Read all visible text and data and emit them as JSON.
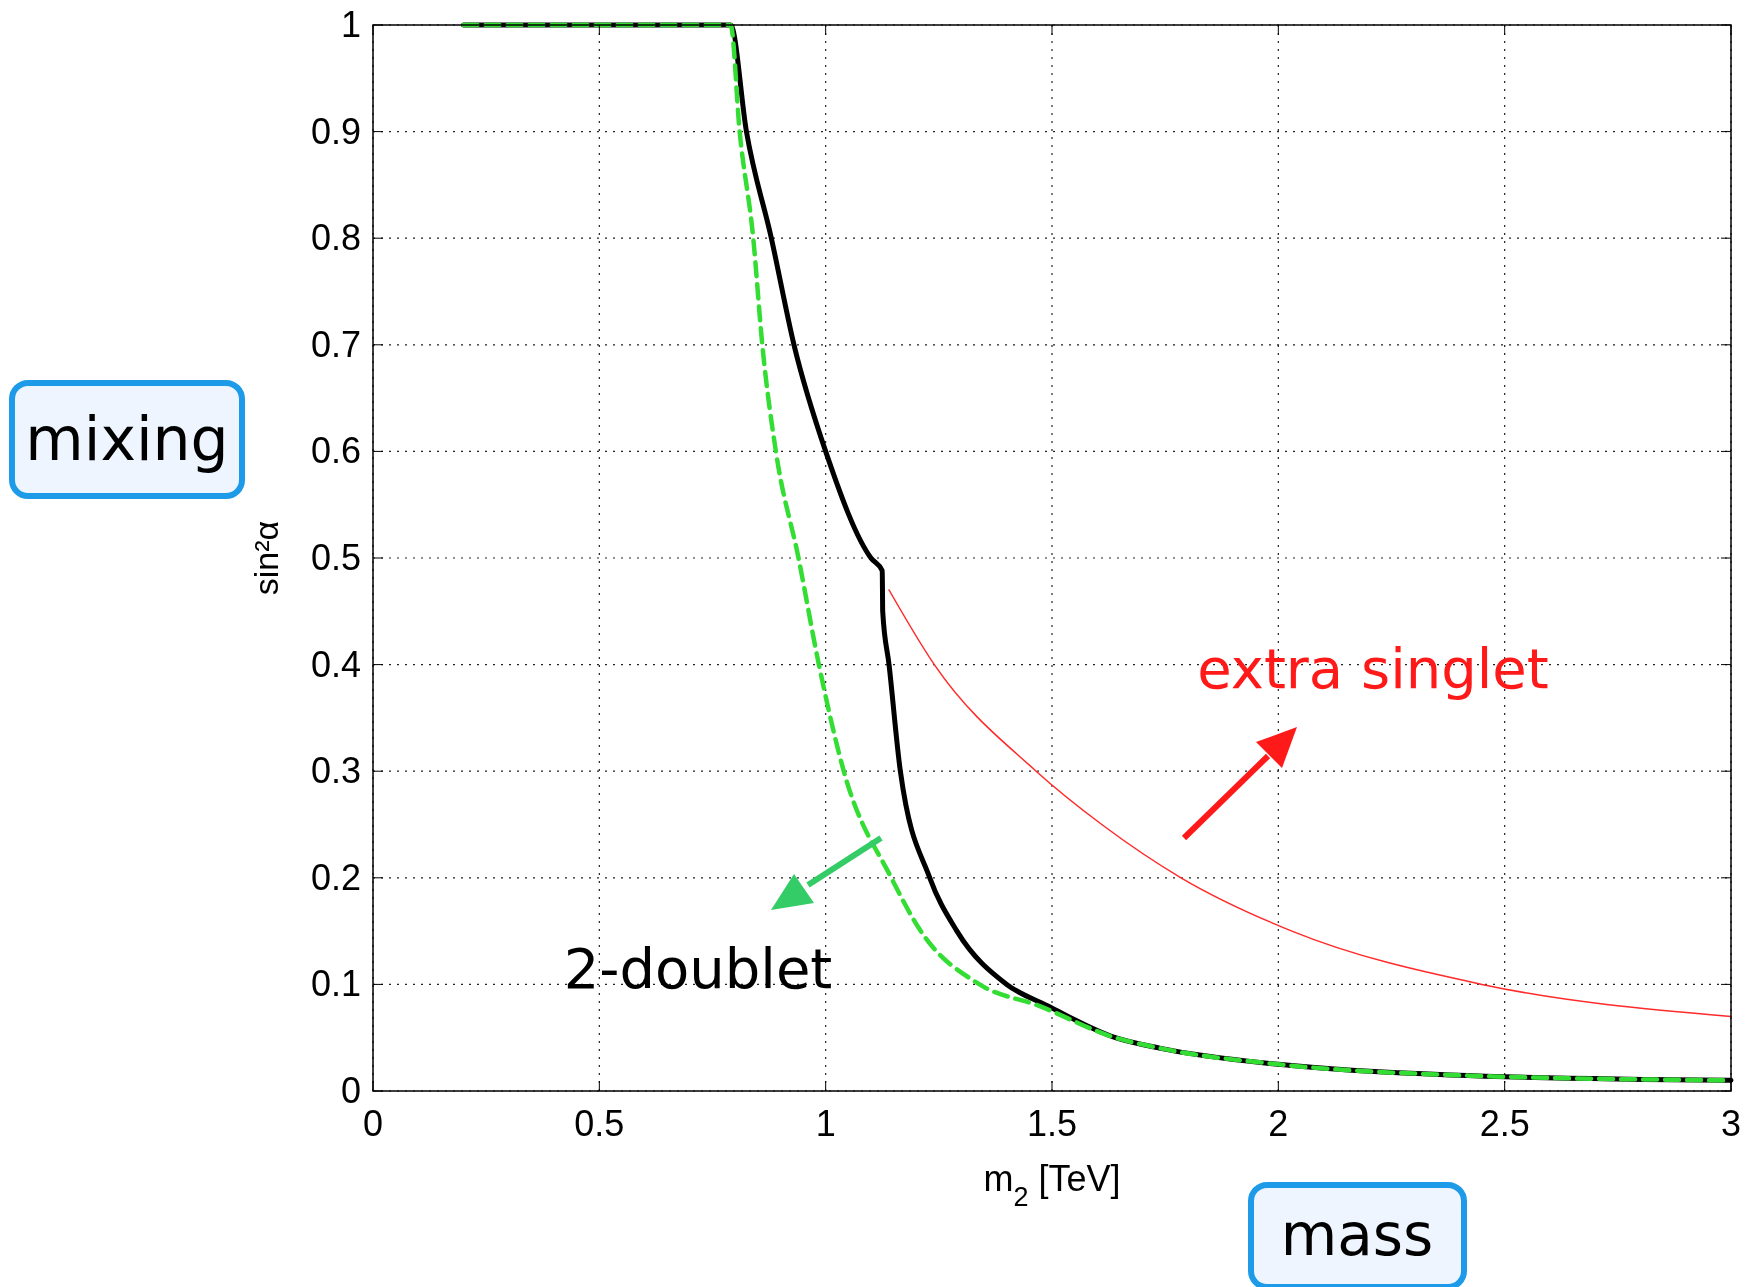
{
  "chart_data": {
    "type": "line",
    "xlabel": "m$_{2}$ [TeV]",
    "ylabel": "sin²α",
    "xlim": [
      0,
      3
    ],
    "ylim": [
      0,
      1
    ],
    "xticks": [
      0,
      0.5,
      1,
      1.5,
      2,
      2.5,
      3
    ],
    "yticks": [
      0,
      0.1,
      0.2,
      0.3,
      0.4,
      0.5,
      0.6,
      0.7,
      0.8,
      0.9,
      1
    ],
    "grid": true,
    "series": [
      {
        "color": "#ff2a2a",
        "line_style": "solid",
        "x": [
          1.14,
          1.24,
          1.465,
          1.61,
          1.785,
          2.03,
          2.45,
          3
        ],
        "values": [
          0.47,
          0.4,
          0.3,
          0.25,
          0.2,
          0.15,
          0.1,
          0.07
        ]
      },
      {
        "color": "#000000",
        "line_style": "solid",
        "x": [
          0.2,
          0.79,
          0.825,
          0.88,
          0.93,
          1.0,
          1.1,
          1.125,
          1.126,
          1.14,
          1.165,
          1.23,
          1.29,
          1.4,
          1.49,
          1.64,
          1.74,
          2.0,
          2.38,
          3
        ],
        "values": [
          1,
          1,
          0.9,
          0.8,
          0.7,
          0.6,
          0.5,
          0.488,
          0.45,
          0.4,
          0.3,
          0.2,
          0.15,
          0.1,
          0.08,
          0.05,
          0.04,
          0.025,
          0.015,
          0.01
        ]
      },
      {
        "color": "#33dd33",
        "line_style": "dashed",
        "x": [
          0.2,
          0.79,
          0.81,
          0.84,
          0.86,
          0.89,
          0.94,
          0.985,
          1.04,
          1.145,
          1.21,
          1.34,
          1.47,
          1.64,
          1.74,
          2.0,
          2.38,
          3
        ],
        "values": [
          1,
          1,
          0.9,
          0.8,
          0.7,
          0.6,
          0.5,
          0.4,
          0.3,
          0.2,
          0.15,
          0.1,
          0.08,
          0.05,
          0.04,
          0.025,
          0.015,
          0.01
        ]
      }
    ],
    "annotations": [
      "mixing",
      "mass",
      "extra singlet",
      "2-doublet"
    ]
  }
}
